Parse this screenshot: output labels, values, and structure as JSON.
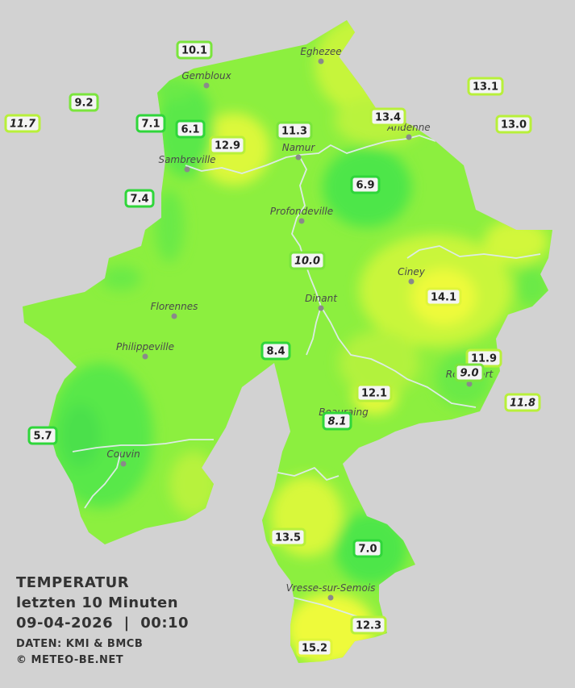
{
  "legend": {
    "title": "TEMPERATUR",
    "subtitle": "letzten 10 Minuten",
    "datetime": "09-04-2026  |  00:10",
    "source": "DATEN: KMI & BMCB",
    "copyright": "© METEO-BE.NET"
  },
  "colors": {
    "background": "#d2d2d2",
    "cold_green": "#4ef04a",
    "mid_green": "#86f040",
    "warm_yellow": "#e8fa3a",
    "river": "#d9e6e6"
  },
  "cities": [
    {
      "name": "Eghezee"
    },
    {
      "name": "Gembloux"
    },
    {
      "name": "Andenne"
    },
    {
      "name": "Namur"
    },
    {
      "name": "Sambreville"
    },
    {
      "name": "Profondeville"
    },
    {
      "name": "Ciney"
    },
    {
      "name": "Dinant"
    },
    {
      "name": "Florennes"
    },
    {
      "name": "Philippeville"
    },
    {
      "name": "Rochefort"
    },
    {
      "name": "Beauraing"
    },
    {
      "name": "Couvin"
    },
    {
      "name": "Vresse-sur-Semois"
    }
  ],
  "stations": [
    {
      "value": "10.1",
      "italic": false
    },
    {
      "value": "9.2",
      "italic": false
    },
    {
      "value": "11.7",
      "italic": true
    },
    {
      "value": "7.1",
      "italic": false
    },
    {
      "value": "6.1",
      "italic": false
    },
    {
      "value": "12.9",
      "italic": false
    },
    {
      "value": "11.3",
      "italic": false
    },
    {
      "value": "13.4",
      "italic": false
    },
    {
      "value": "13.1",
      "italic": false
    },
    {
      "value": "13.0",
      "italic": false
    },
    {
      "value": "6.9",
      "italic": false
    },
    {
      "value": "7.4",
      "italic": false
    },
    {
      "value": "10.0",
      "italic": true
    },
    {
      "value": "14.1",
      "italic": false
    },
    {
      "value": "8.4",
      "italic": false
    },
    {
      "value": "11.9",
      "italic": false
    },
    {
      "value": "9.0",
      "italic": true
    },
    {
      "value": "12.1",
      "italic": false
    },
    {
      "value": "11.8",
      "italic": true
    },
    {
      "value": "8.1",
      "italic": true
    },
    {
      "value": "5.7",
      "italic": false
    },
    {
      "value": "13.5",
      "italic": false
    },
    {
      "value": "7.0",
      "italic": false
    },
    {
      "value": "12.3",
      "italic": false
    },
    {
      "value": "15.2",
      "italic": false
    }
  ]
}
